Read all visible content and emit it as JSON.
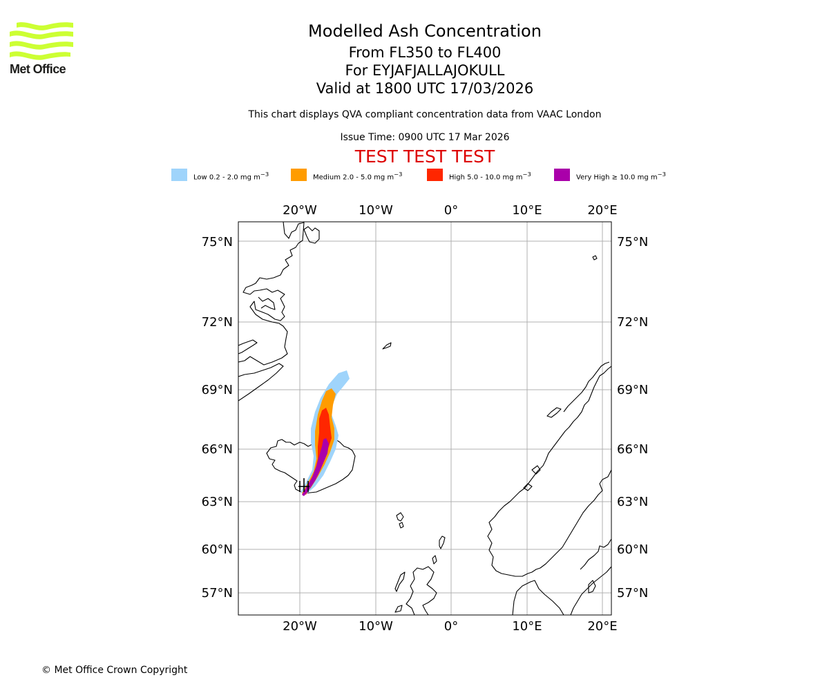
{
  "logo": {
    "name": "Met Office",
    "color": "#ccff33"
  },
  "header": {
    "title": "Modelled Ash Concentration",
    "level_range": "From FL350 to FL400",
    "volcano": "For EYJAFJALLAJOKULL",
    "valid_time": "Valid at 1800 UTC 17/03/2026",
    "compliance_note": "This chart displays QVA compliant concentration data from VAAC London",
    "issue_time": "Issue Time: 0900 UTC 17 Mar 2026",
    "test_banner": "TEST TEST TEST"
  },
  "legend": [
    {
      "label": "Low 0.2 - 2.0 mg m",
      "color": "#9fd4fb"
    },
    {
      "label": "Medium 2.0 - 5.0 mg m",
      "color": "#ff9c00"
    },
    {
      "label": "High 5.0 - 10.0 mg m",
      "color": "#ff2600"
    },
    {
      "label": "Very High ≥ 10.0 mg m",
      "color": "#aa00aa"
    }
  ],
  "legend_unit_exponent": "−3",
  "map": {
    "lon_ticks": [
      "20°W",
      "10°W",
      "0°",
      "10°E",
      "20°E"
    ],
    "lat_ticks": [
      "75°N",
      "72°N",
      "69°N",
      "66°N",
      "63°N",
      "60°N",
      "57°N"
    ]
  },
  "footer": {
    "copyright": "© Met Office Crown Copyright"
  }
}
